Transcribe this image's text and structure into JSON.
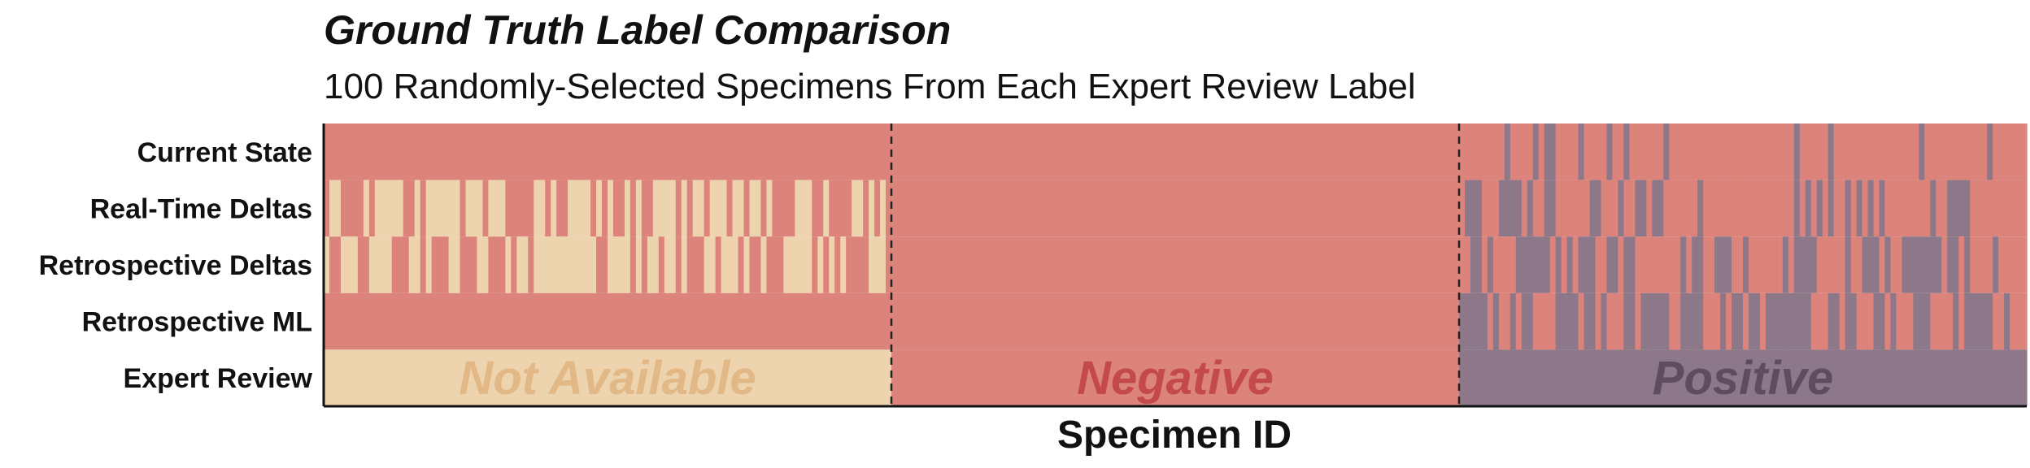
{
  "chart_data": {
    "type": "heatmap",
    "title": "Ground Truth Label Comparison",
    "subtitle": "100 Randomly-Selected Specimens From Each Expert Review Label",
    "xlabel": "Specimen ID",
    "rows": [
      "Current State",
      "Real-Time Deltas",
      "Retrospective Deltas",
      "Retrospective ML",
      "Expert Review"
    ],
    "groups": [
      "Not Available",
      "Negative",
      "Positive"
    ],
    "specimens_per_group": 100,
    "colors": {
      "Not Available": "#edd3ae",
      "Negative": "#dc837b",
      "Positive": "#8c7889",
      "Negative text": "#c44a4a",
      "Positive text": "#5e4d5f",
      "Not Available text": "#e2b886"
    },
    "data": {
      "Current State": [
        "Negative",
        "Negative",
        "mixed: Negative / Positive"
      ],
      "Real-Time Deltas": [
        "mixed: Not Available / Negative",
        "Negative",
        "mixed: Negative / Positive"
      ],
      "Retrospective Deltas": [
        "mixed: Not Available / Negative",
        "Negative",
        "mixed: Negative / Positive"
      ],
      "Retrospective ML": [
        "Negative",
        "Negative",
        "mixed: Negative / Positive"
      ],
      "Expert Review": [
        "Not Available",
        "Negative",
        "Positive"
      ]
    }
  }
}
